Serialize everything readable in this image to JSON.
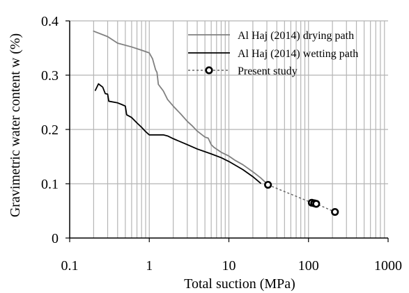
{
  "chart_data": {
    "type": "line",
    "title": "",
    "xlabel": "Total suction (MPa)",
    "ylabel": "Gravimetric water content w (%)",
    "xscale": "log",
    "xlim": [
      0.1,
      1000
    ],
    "ylim": [
      0,
      0.4
    ],
    "x_ticks": [
      "0.1",
      "1",
      "10",
      "100",
      "1000"
    ],
    "y_ticks": [
      "0",
      "0.1",
      "0.2",
      "0.3",
      "0.4"
    ],
    "grid": {
      "vertical": "log minor and major gridlines",
      "horizontal": "major gridlines",
      "visible": true
    },
    "legend": {
      "placement": "top-right"
    },
    "series": [
      {
        "name": "Al Haj (2014) drying path",
        "style": "solid line",
        "color": "#808080",
        "points": [
          [
            0.2,
            0.381
          ],
          [
            0.3,
            0.371
          ],
          [
            0.4,
            0.359
          ],
          [
            0.6,
            0.352
          ],
          [
            0.8,
            0.346
          ],
          [
            1.0,
            0.341
          ],
          [
            1.1,
            0.33
          ],
          [
            1.2,
            0.31
          ],
          [
            1.25,
            0.305
          ],
          [
            1.3,
            0.283
          ],
          [
            1.5,
            0.271
          ],
          [
            1.7,
            0.255
          ],
          [
            2.0,
            0.243
          ],
          [
            2.5,
            0.228
          ],
          [
            3.0,
            0.215
          ],
          [
            3.5,
            0.206
          ],
          [
            4.0,
            0.197
          ],
          [
            5.0,
            0.186
          ],
          [
            5.5,
            0.184
          ],
          [
            6.0,
            0.172
          ],
          [
            6.5,
            0.167
          ],
          [
            8.0,
            0.158
          ],
          [
            10.0,
            0.151
          ],
          [
            12.0,
            0.143
          ],
          [
            15.0,
            0.135
          ],
          [
            20.0,
            0.122
          ],
          [
            25.0,
            0.111
          ],
          [
            30.0,
            0.1
          ]
        ]
      },
      {
        "name": "Al Haj (2014) wetting path",
        "style": "solid line",
        "color": "#000000",
        "points": [
          [
            0.21,
            0.272
          ],
          [
            0.23,
            0.284
          ],
          [
            0.26,
            0.278
          ],
          [
            0.28,
            0.266
          ],
          [
            0.3,
            0.265
          ],
          [
            0.31,
            0.252
          ],
          [
            0.4,
            0.249
          ],
          [
            0.45,
            0.246
          ],
          [
            0.5,
            0.243
          ],
          [
            0.52,
            0.227
          ],
          [
            0.6,
            0.222
          ],
          [
            0.7,
            0.212
          ],
          [
            0.8,
            0.204
          ],
          [
            0.9,
            0.196
          ],
          [
            1.0,
            0.19
          ],
          [
            1.5,
            0.19
          ],
          [
            1.7,
            0.188
          ],
          [
            2.0,
            0.183
          ],
          [
            3.0,
            0.172
          ],
          [
            4.0,
            0.164
          ],
          [
            6.0,
            0.155
          ],
          [
            8.0,
            0.148
          ],
          [
            10.0,
            0.141
          ],
          [
            15.0,
            0.126
          ],
          [
            20.0,
            0.113
          ],
          [
            25.0,
            0.101
          ]
        ]
      },
      {
        "name": "Present study",
        "style": "dashed line with open circle markers",
        "color": "#000000",
        "points": [
          [
            31.0,
            0.098
          ],
          [
            110.0,
            0.065
          ],
          [
            118.0,
            0.064
          ],
          [
            125.0,
            0.063
          ],
          [
            215.0,
            0.048
          ]
        ]
      }
    ]
  }
}
